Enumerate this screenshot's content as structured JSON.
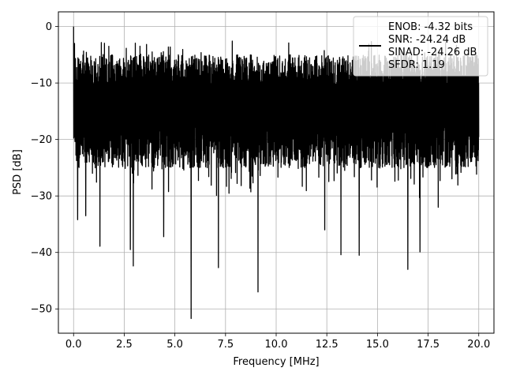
{
  "chart_data": {
    "type": "line",
    "xlabel": "Frequency [MHz]",
    "ylabel": "PSD [dB]",
    "xlim": [
      -0.75,
      20.75
    ],
    "ylim": [
      -54.3,
      2.6
    ],
    "xticks": [
      0.0,
      2.5,
      5.0,
      7.5,
      10.0,
      12.5,
      15.0,
      17.5,
      20.0
    ],
    "xtick_labels": [
      "0.0",
      "2.5",
      "5.0",
      "7.5",
      "10.0",
      "12.5",
      "15.0",
      "17.5",
      "20.0"
    ],
    "yticks": [
      0,
      -10,
      -20,
      -30,
      -40,
      -50
    ],
    "ytick_labels": [
      "0",
      "−10",
      "−20",
      "−30",
      "−40",
      "−50"
    ],
    "grid": true,
    "legend_placement": "top-right",
    "legend_lines": [
      "ENOB: -4.32 bits",
      "SNR: -24.24 dB",
      "SINAD: -24.26 dB",
      "SFDR: 1.19"
    ],
    "series_color": "#000000",
    "x_range": [
      0,
      20
    ],
    "y_range": [
      -51.7,
      0
    ],
    "band_top": -5,
    "band_bottom": -25,
    "peaks": [
      {
        "x": 0.0,
        "y": 0.0
      },
      {
        "x": 0.05,
        "y": -3.0
      },
      {
        "x": 0.1,
        "y": -11.7
      },
      {
        "x": 0.2,
        "y": -34.2
      },
      {
        "x": 0.6,
        "y": -33.5
      },
      {
        "x": 1.3,
        "y": -38.9
      },
      {
        "x": 2.8,
        "y": -39.5
      },
      {
        "x": 2.95,
        "y": -42.4
      },
      {
        "x": 4.45,
        "y": -37.2
      },
      {
        "x": 5.8,
        "y": -51.7
      },
      {
        "x": 7.15,
        "y": -42.7
      },
      {
        "x": 9.1,
        "y": -47.0
      },
      {
        "x": 12.4,
        "y": -36.0
      },
      {
        "x": 13.2,
        "y": -40.4
      },
      {
        "x": 14.1,
        "y": -40.5
      },
      {
        "x": 16.5,
        "y": -43.0
      },
      {
        "x": 17.1,
        "y": -39.9
      },
      {
        "x": 18.0,
        "y": -32.0
      }
    ]
  }
}
